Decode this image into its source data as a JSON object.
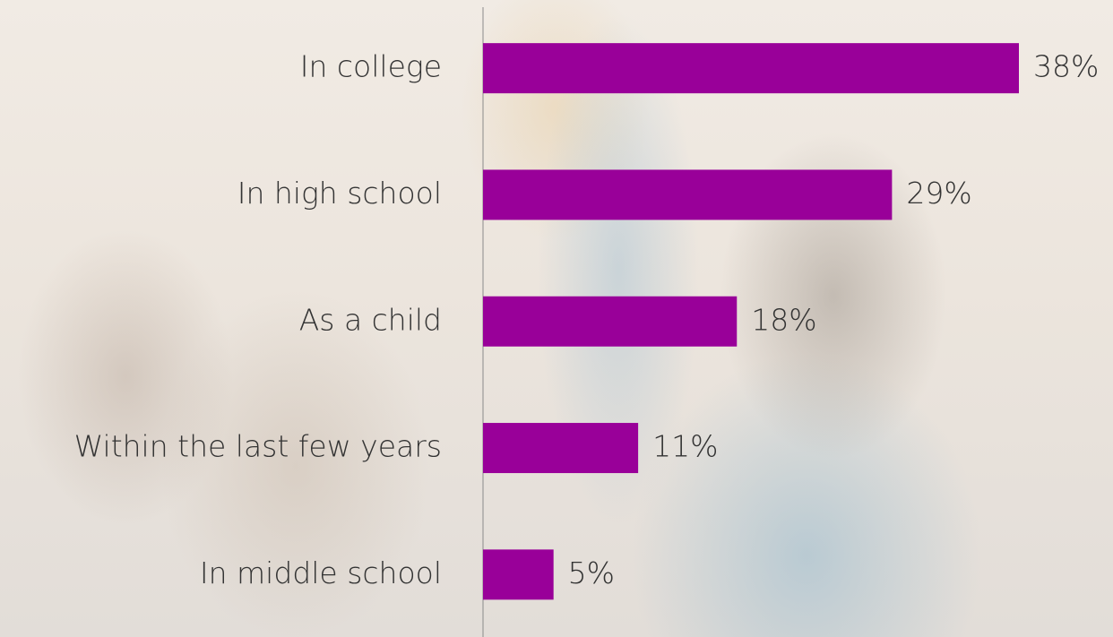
{
  "chart_data": {
    "type": "bar",
    "orientation": "horizontal",
    "categories": [
      "In college",
      "In high school",
      "As a child",
      "Within the last few years",
      "In middle school"
    ],
    "values": [
      38,
      29,
      18,
      11,
      5
    ],
    "value_labels": [
      "38%",
      "29%",
      "18%",
      "11%",
      "5%"
    ],
    "color": "#990099"
  }
}
